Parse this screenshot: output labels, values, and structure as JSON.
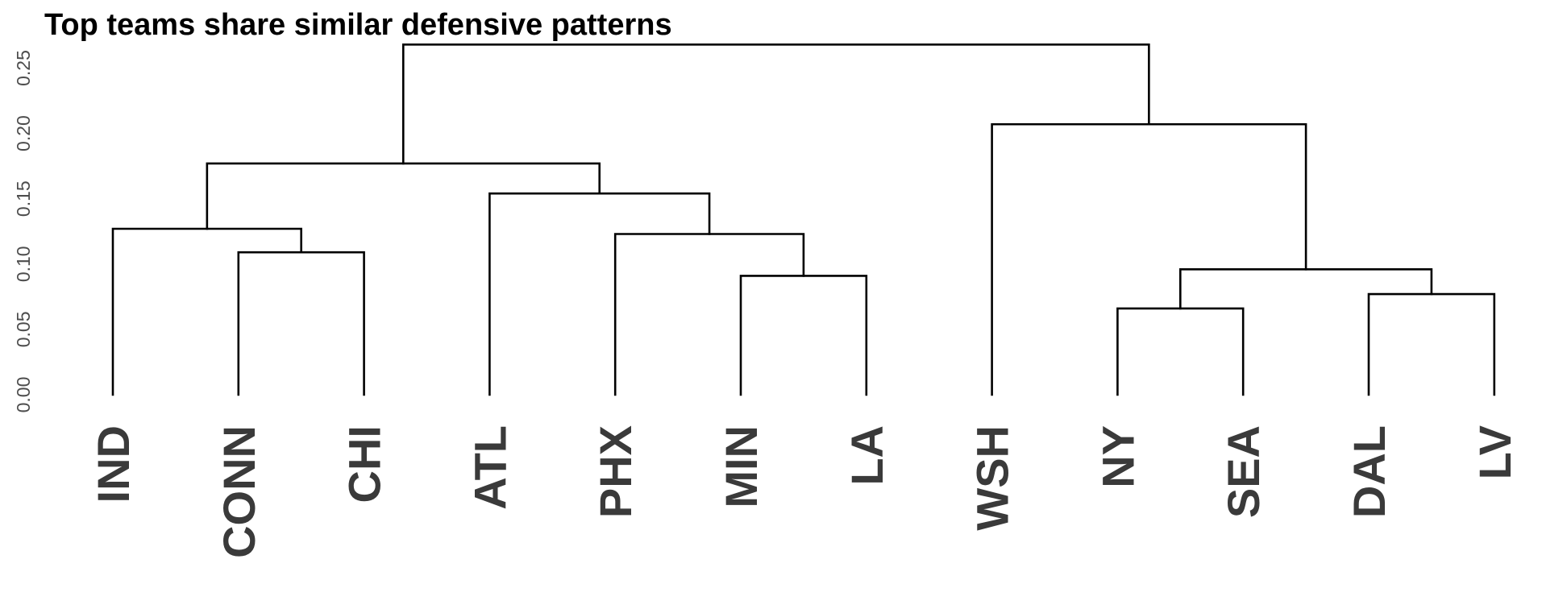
{
  "title": "Top teams share similar defensive patterns",
  "chart_data": {
    "type": "dendrogram",
    "title": "Top teams share similar defensive patterns",
    "xlabel": "",
    "ylabel": "",
    "ylim": [
      0,
      0.27
    ],
    "yticks": [
      "0.00",
      "0.05",
      "0.10",
      "0.15",
      "0.20",
      "0.25"
    ],
    "grid": false,
    "leaves": [
      "IND",
      "CONN",
      "CHI",
      "ATL",
      "PHX",
      "MIN",
      "LA",
      "WSH",
      "NY",
      "SEA",
      "DAL",
      "LV"
    ],
    "merges": [
      {
        "left": "CONN",
        "right": "CHI",
        "height": 0.109
      },
      {
        "left": "IND",
        "right": "CONN+CHI",
        "height": 0.127
      },
      {
        "left": "MIN",
        "right": "LA",
        "height": 0.091
      },
      {
        "left": "PHX",
        "right": "MIN+LA",
        "height": 0.123
      },
      {
        "left": "ATL",
        "right": "PHX+MIN+LA",
        "height": 0.154
      },
      {
        "left": "IND+CONN+CHI",
        "right": "ATL+PHX+MIN+LA",
        "height": 0.177
      },
      {
        "left": "NY",
        "right": "SEA",
        "height": 0.066
      },
      {
        "left": "DAL",
        "right": "LV",
        "height": 0.077
      },
      {
        "left": "NY+SEA",
        "right": "DAL+LV",
        "height": 0.096
      },
      {
        "left": "WSH",
        "right": "NY+SEA+DAL+LV",
        "height": 0.207
      },
      {
        "left": "IND+CONN+CHI+ATL+PHX+MIN+LA",
        "right": "WSH+NY+SEA+DAL+LV",
        "height": 0.268
      }
    ]
  }
}
